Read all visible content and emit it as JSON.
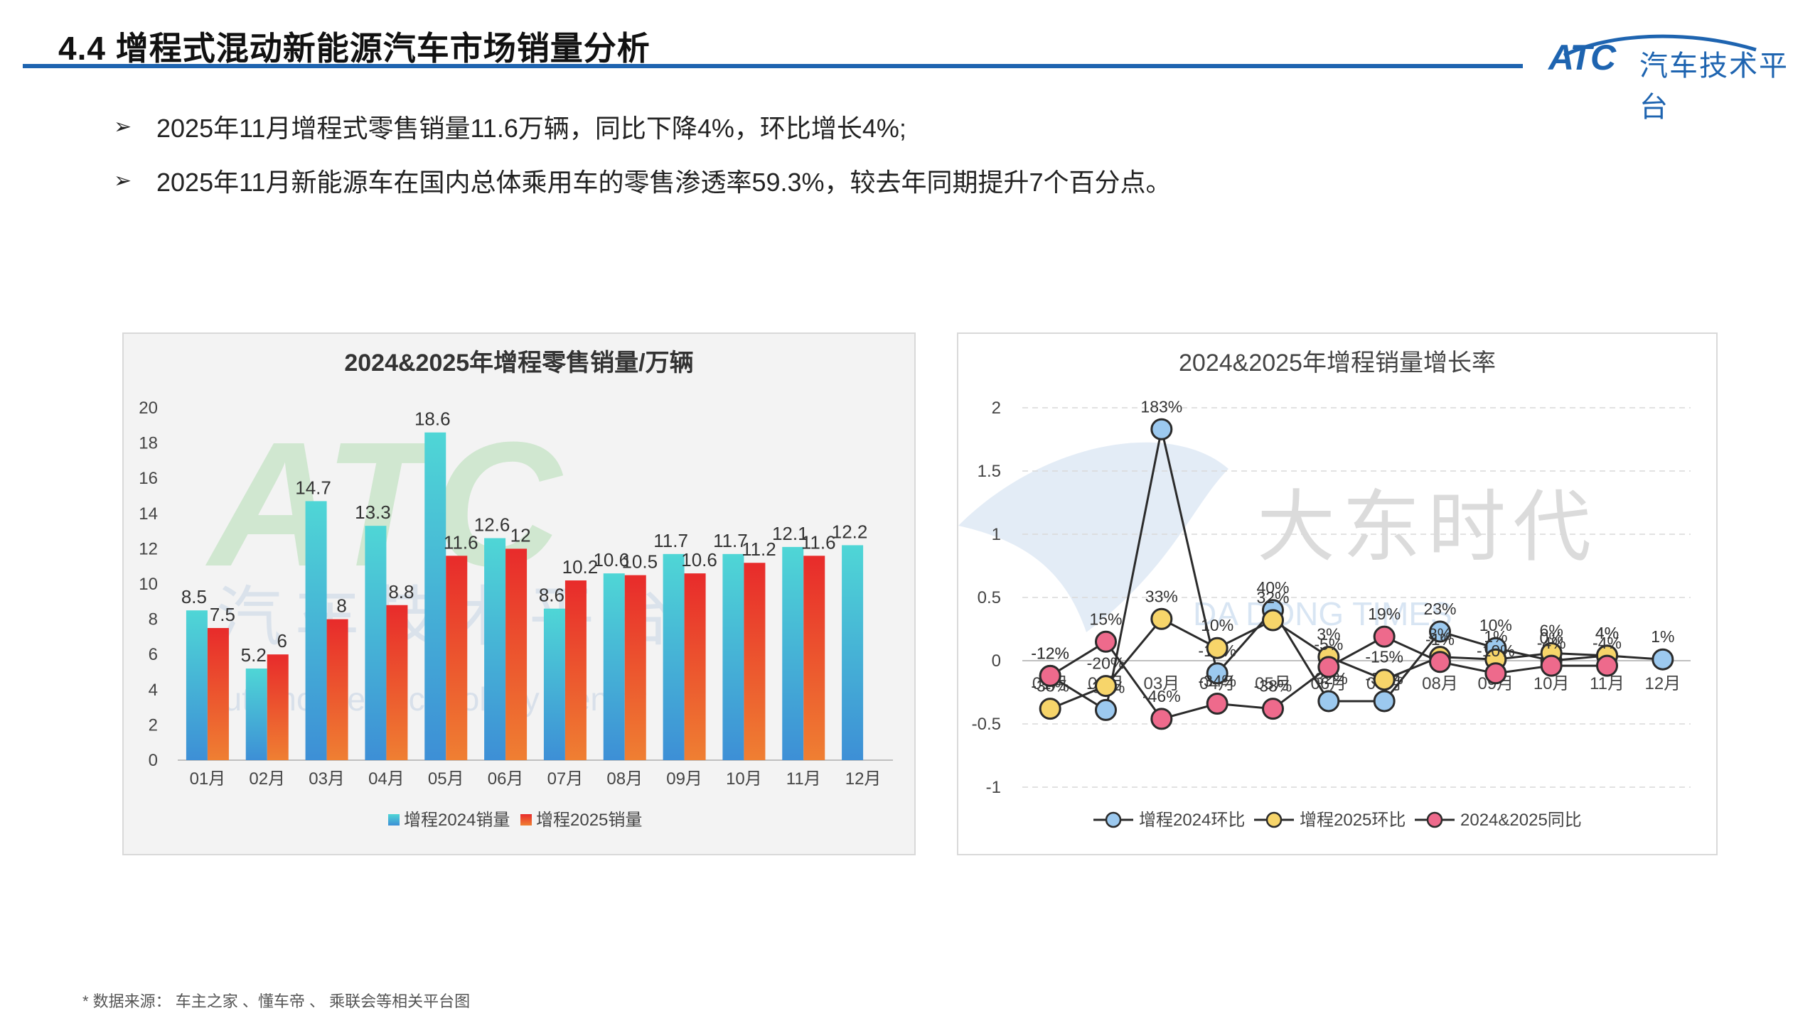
{
  "header": {
    "title": "4.4 增程式混动新能源汽车市场销量分析",
    "logo_mark": "ATC",
    "logo_text": "汽车技术平台"
  },
  "bullets": [
    {
      "text": "2025年11月增程式零售销量11.6万辆，同比下降4%，环比增长4%;"
    },
    {
      "text": "2025年11月新能源车在国内总体乘用车的零售渗透率59.3%，较去年同期提升7个百分点。"
    }
  ],
  "footnote": "* 数据来源：  车主之家 、懂车帝 、 乘联会等相关平台图",
  "watermarks": {
    "atc_big": "ATC",
    "atc_cn": "汽车技术平台",
    "atc_en": "Automotive Technology Center",
    "dd_cn": "大东时代",
    "dd_en": "DA DONG TIMES"
  },
  "chart_data": [
    {
      "type": "bar",
      "title": "2024&2025年增程零售销量/万辆",
      "categories": [
        "01月",
        "02月",
        "03月",
        "04月",
        "05月",
        "06月",
        "07月",
        "08月",
        "09月",
        "10月",
        "11月",
        "12月"
      ],
      "series": [
        {
          "name": "增程2024销量",
          "values": [
            8.5,
            5.2,
            14.7,
            13.3,
            18.6,
            12.6,
            8.6,
            10.6,
            11.7,
            11.7,
            12.1,
            12.2
          ],
          "labels": [
            "8.5",
            "5.2",
            "14.7",
            "13.3",
            "18.6",
            "12.6",
            "8.6",
            "10.6",
            "11.7",
            "11.7",
            "12.1",
            "12.2"
          ],
          "color_top": "#4fd6d6",
          "color_bottom": "#3d8fd6"
        },
        {
          "name": "增程2025销量",
          "values": [
            7.5,
            6,
            8,
            8.8,
            11.6,
            12,
            10.2,
            10.5,
            10.6,
            11.2,
            11.6,
            null
          ],
          "labels": [
            "7.5",
            "6",
            "8",
            "8.8",
            "11.6",
            "12",
            "10.2",
            "10.5",
            "10.6",
            "11.2",
            "11.6",
            ""
          ],
          "color_top": "#e82b2b",
          "color_bottom": "#ef7f32"
        }
      ],
      "ylim": [
        0,
        20
      ],
      "yticks": [
        "0",
        "2",
        "4",
        "6",
        "8",
        "10",
        "12",
        "14",
        "16",
        "18",
        "20"
      ],
      "legend": "bottom"
    },
    {
      "type": "line",
      "title": "2024&2025年增程销量增长率",
      "categories": [
        "01月",
        "02月",
        "03月",
        "04月",
        "05月",
        "06月",
        "07月",
        "08月",
        "09月",
        "10月",
        "11月",
        "12月"
      ],
      "series": [
        {
          "name": "增程2024环比",
          "color": "#9cc9ef",
          "values": [
            -0.12,
            -0.39,
            1.83,
            -0.1,
            0.4,
            -0.32,
            -0.32,
            0.23,
            0.1,
            0,
            0.04,
            0.01
          ],
          "labels": [
            "-12%",
            "-39%",
            "183%",
            "-10%",
            "40%",
            "-32%",
            "-32%",
            "23%",
            "10%",
            "0%",
            "4%",
            "1%"
          ]
        },
        {
          "name": "增程2025环比",
          "color": "#f7d56a",
          "values": [
            -0.38,
            -0.2,
            0.33,
            0.1,
            0.32,
            0.03,
            -0.15,
            0.03,
            0.01,
            0.06,
            0.04,
            null
          ],
          "labels": [
            "-38%",
            "-20%",
            "33%",
            "10%",
            "32%",
            "3%",
            "-15%",
            "3%",
            "1%",
            "6%",
            "4%",
            ""
          ]
        },
        {
          "name": "2024&2025同比",
          "color": "#ee6a8c",
          "values": [
            -0.12,
            0.15,
            -0.46,
            -0.34,
            -0.38,
            -0.05,
            0.19,
            -0.01,
            -0.1,
            -0.04,
            -0.04,
            null
          ],
          "labels": [
            "-12%",
            "15%",
            "-46%",
            "-34%",
            "-38%",
            "-5%",
            "19%",
            "-1%",
            "-10%",
            "-4%",
            "-4%",
            ""
          ]
        }
      ],
      "ylim": [
        -1,
        2
      ],
      "yticks": [
        "-1",
        "-0.5",
        "0",
        "0.5",
        "1",
        "1.5",
        "2"
      ],
      "grid": true,
      "legend": "bottom"
    }
  ]
}
